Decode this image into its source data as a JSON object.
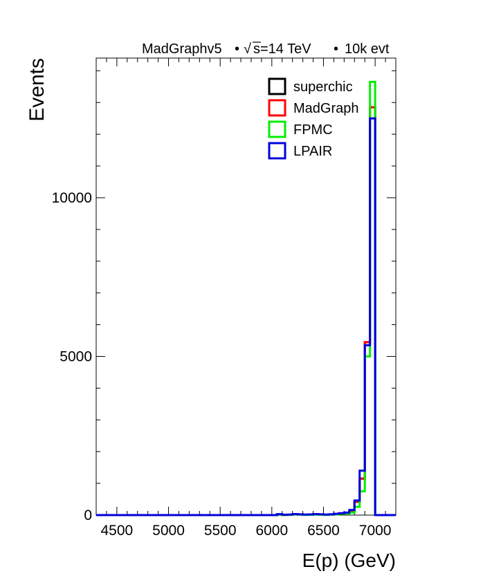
{
  "header": {
    "generator": "MadGraphv5",
    "sqrt_symbol": "√",
    "energy": "s=14 TeV",
    "events": "10k evt",
    "bullet": "•"
  },
  "chart_data": {
    "type": "step-histogram",
    "title": "",
    "xlabel": "E(p) (GeV)",
    "ylabel": "Events",
    "xlim": [
      4300,
      7200
    ],
    "ylim": [
      0,
      14400
    ],
    "x_ticks": [
      4500,
      5000,
      5500,
      6000,
      6500,
      7000
    ],
    "x_tick_labels": [
      "4500",
      "5000",
      "5500",
      "6000",
      "6500",
      "7000"
    ],
    "y_ticks": [
      0,
      5000,
      10000
    ],
    "y_tick_labels": [
      "0",
      "5000",
      "10000"
    ],
    "bin_edges": [
      4300,
      6050,
      6100,
      6150,
      6200,
      6250,
      6300,
      6350,
      6400,
      6450,
      6500,
      6550,
      6600,
      6650,
      6700,
      6750,
      6800,
      6850,
      6900,
      6950,
      7000,
      7050,
      7200
    ],
    "series": [
      {
        "name": "superchic",
        "color": "#000000",
        "values": [
          0,
          20,
          5,
          10,
          30,
          20,
          10,
          15,
          25,
          20,
          10,
          20,
          30,
          50,
          70,
          120,
          420,
          1150,
          5450,
          12850,
          0,
          0
        ]
      },
      {
        "name": "MadGraph",
        "color": "#ff0000",
        "values": [
          0,
          20,
          5,
          10,
          30,
          20,
          10,
          15,
          25,
          20,
          10,
          20,
          30,
          50,
          70,
          120,
          420,
          1150,
          5450,
          12850,
          0,
          0
        ]
      },
      {
        "name": "FPMC",
        "color": "#00ee00",
        "values": [
          0,
          10,
          5,
          5,
          20,
          15,
          5,
          10,
          15,
          10,
          5,
          15,
          20,
          40,
          50,
          80,
          260,
          750,
          5000,
          13650,
          0,
          0
        ]
      },
      {
        "name": "LPAIR",
        "color": "#0000dd",
        "values": [
          0,
          30,
          10,
          15,
          30,
          25,
          15,
          20,
          30,
          25,
          15,
          25,
          40,
          60,
          80,
          160,
          460,
          1400,
          5350,
          12500,
          0,
          0
        ]
      }
    ],
    "legend_position": "top-right",
    "grid": false
  }
}
